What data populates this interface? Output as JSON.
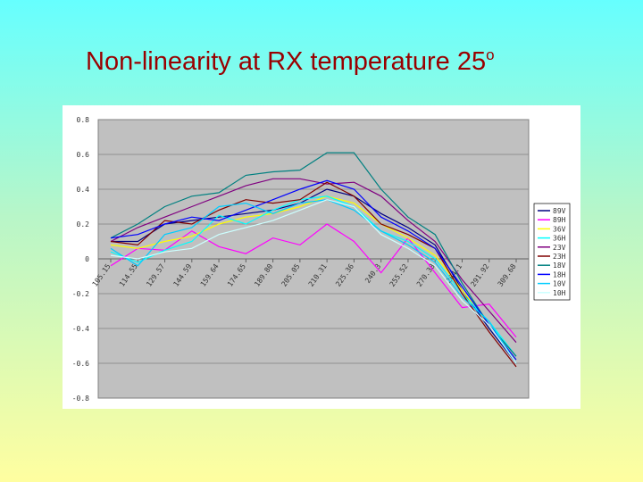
{
  "title": {
    "main": "Non-linearity at RX temperature 25",
    "superscript": "o"
  },
  "chart_data": {
    "type": "line",
    "title": "Non-linearity at RX temperature 25o",
    "xlabel": "",
    "ylabel": "",
    "ylim": [
      -0.8,
      0.8
    ],
    "yticks": [
      "0.8",
      "0.6",
      "0.4",
      "0.2",
      "0",
      "-0.2",
      "-0.4",
      "-0.6",
      "-0.8"
    ],
    "categories": [
      "105.15",
      "114.55",
      "129.57",
      "144.59",
      "159.64",
      "174.65",
      "189.80",
      "205.05",
      "210.31",
      "225.36",
      "240.3",
      "255.52",
      "270.38",
      "284.1",
      "291.92",
      "309.68"
    ],
    "xtick_labels": [
      "105.15",
      "114.55",
      "129.57",
      "144.59",
      "159.64",
      "174.65",
      "189.80",
      "205.05",
      "210.31",
      "225.36",
      "240.3",
      "255.52",
      "270.38",
      "284.1",
      "291.92",
      "309.68"
    ],
    "grid": true,
    "legend_position": "right",
    "plot_background": "#c0c0c0",
    "series": [
      {
        "name": "89V",
        "color": "#000080",
        "values": [
          0.1,
          0.1,
          0.2,
          0.22,
          0.24,
          0.26,
          0.28,
          0.32,
          0.4,
          0.36,
          0.26,
          0.18,
          0.08,
          -0.18,
          -0.4,
          -0.6
        ]
      },
      {
        "name": "89H",
        "color": "#ff00ff",
        "values": [
          -0.04,
          0.06,
          0.05,
          0.16,
          0.07,
          0.03,
          0.12,
          0.08,
          0.2,
          0.1,
          -0.08,
          0.12,
          -0.08,
          -0.28,
          -0.26,
          -0.45
        ]
      },
      {
        "name": "36V",
        "color": "#ffff00",
        "values": [
          0.08,
          0.06,
          0.1,
          0.13,
          0.2,
          0.24,
          0.26,
          0.3,
          0.36,
          0.32,
          0.2,
          0.12,
          0.02,
          -0.18,
          -0.38,
          -0.58
        ]
      },
      {
        "name": "36H",
        "color": "#00ffff",
        "values": [
          0.04,
          -0.02,
          0.05,
          0.1,
          0.25,
          0.2,
          0.28,
          0.34,
          0.36,
          0.3,
          0.16,
          0.1,
          0.0,
          -0.2,
          -0.36,
          -0.56
        ]
      },
      {
        "name": "23V",
        "color": "#800080",
        "values": [
          0.1,
          0.18,
          0.24,
          0.3,
          0.36,
          0.42,
          0.46,
          0.46,
          0.43,
          0.44,
          0.36,
          0.22,
          0.1,
          -0.12,
          -0.3,
          -0.48
        ]
      },
      {
        "name": "23H",
        "color": "#800000",
        "values": [
          0.1,
          0.08,
          0.22,
          0.2,
          0.28,
          0.34,
          0.32,
          0.34,
          0.44,
          0.36,
          0.2,
          0.14,
          0.06,
          -0.2,
          -0.42,
          -0.62
        ]
      },
      {
        "name": "18V",
        "color": "#008080",
        "values": [
          0.12,
          0.2,
          0.3,
          0.36,
          0.38,
          0.48,
          0.5,
          0.51,
          0.61,
          0.61,
          0.4,
          0.24,
          0.14,
          -0.14,
          -0.38,
          -0.56
        ]
      },
      {
        "name": "18H",
        "color": "#0000ff",
        "values": [
          0.12,
          0.14,
          0.2,
          0.24,
          0.22,
          0.28,
          0.34,
          0.4,
          0.45,
          0.4,
          0.24,
          0.16,
          0.06,
          -0.16,
          -0.38,
          -0.58
        ]
      },
      {
        "name": "10V",
        "color": "#00ccff",
        "values": [
          0.06,
          -0.04,
          0.14,
          0.18,
          0.3,
          0.32,
          0.26,
          0.32,
          0.34,
          0.28,
          0.16,
          0.08,
          -0.02,
          -0.22,
          -0.36,
          -0.6
        ]
      },
      {
        "name": "10H",
        "color": "#ccffff",
        "values": [
          0.02,
          0.0,
          0.04,
          0.06,
          0.14,
          0.18,
          0.22,
          0.28,
          0.34,
          0.3,
          0.14,
          0.06,
          -0.04,
          -0.24,
          -0.38,
          -0.6
        ]
      }
    ]
  }
}
